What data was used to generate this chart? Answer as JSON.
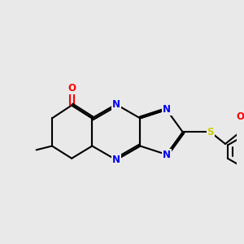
{
  "background_color": "#e9e9e9",
  "bond_color": "#000000",
  "bond_width": 1.5,
  "N_color": "#0000ee",
  "O_color": "#ff0000",
  "S_color": "#cccc00",
  "font_size": 8.5,
  "fig_width": 3.0,
  "fig_height": 3.0,
  "xlim": [
    -1,
    11
  ],
  "ylim": [
    -1,
    11
  ]
}
